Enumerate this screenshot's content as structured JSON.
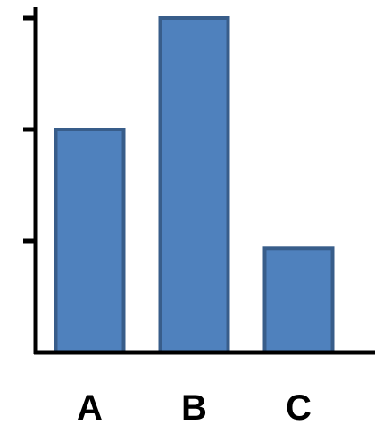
{
  "chart_data": {
    "type": "bar",
    "categories": [
      "A",
      "B",
      "C"
    ],
    "values": [
      3,
      4.5,
      1.4
    ],
    "ylim": [
      0,
      4.5
    ],
    "yticks": [
      1.5,
      3,
      4.5
    ],
    "ytick_labels": false,
    "grid": false,
    "legend": "none",
    "title": "",
    "xlabel": "",
    "ylabel": "",
    "colors": {
      "bar_fill": "#4f81bd",
      "bar_stroke": "#385d8a",
      "axis": "#000000"
    }
  }
}
